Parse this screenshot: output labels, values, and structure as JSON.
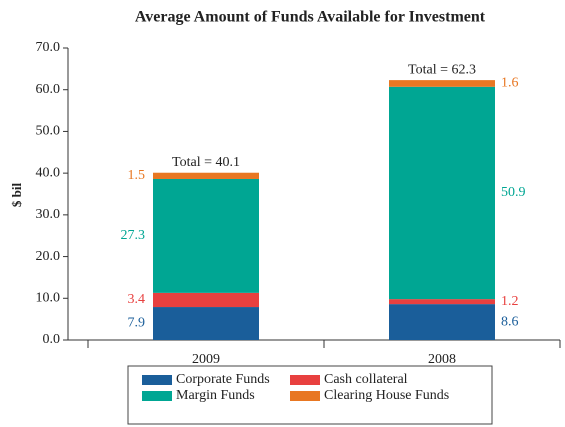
{
  "chart_data": {
    "type": "stacked_bar",
    "title": "Average Amount of Funds Available for Investment",
    "y_label": "$ bil",
    "categories": [
      "2009",
      "2008"
    ],
    "series": [
      {
        "name": "Corporate Funds",
        "color": "#1a5e9a",
        "values": [
          7.9,
          8.6
        ]
      },
      {
        "name": "Cash collateral",
        "color": "#e8403f",
        "values": [
          3.4,
          1.2
        ]
      },
      {
        "name": "Margin Funds",
        "color": "#00a693",
        "values": [
          27.3,
          50.9
        ]
      },
      {
        "name": "Clearing House Funds",
        "color": "#e87722",
        "values": [
          1.5,
          1.6
        ]
      }
    ],
    "annotations": [
      "Total = 40.1",
      "Total = 62.3"
    ],
    "ylim": [
      0,
      70
    ],
    "yticks": [
      {
        "value": 0,
        "label": "0.0"
      },
      {
        "value": 10,
        "label": "10.0"
      },
      {
        "value": 20,
        "label": "20.0"
      },
      {
        "value": 30,
        "label": "30.0"
      },
      {
        "value": 40,
        "label": "40.0"
      },
      {
        "value": 50,
        "label": "50.0"
      },
      {
        "value": 60,
        "label": "60.0"
      },
      {
        "value": 70,
        "label": "70.0"
      }
    ]
  }
}
